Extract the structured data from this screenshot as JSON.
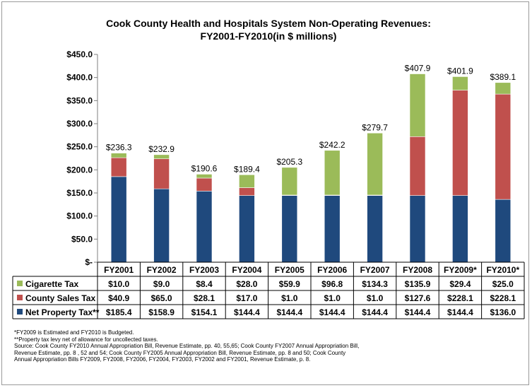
{
  "chart_data": {
    "type": "bar",
    "stacked": true,
    "title": "Cook County Health and Hospitals System Non-Operating Revenues:",
    "subtitle": "FY2001-FY2010(in $ millions)",
    "categories": [
      "FY2001",
      "FY2002",
      "FY2003",
      "FY2004",
      "FY2005",
      "FY2006",
      "FY2007",
      "FY2008",
      "FY2009*",
      "FY2010*"
    ],
    "series": [
      {
        "name": "Net Property Tax**",
        "color": "#1F497D",
        "values": [
          185.4,
          158.9,
          154.1,
          144.4,
          144.4,
          144.4,
          144.4,
          144.4,
          144.4,
          136.0
        ],
        "labels": [
          "$185.4",
          "$158.9",
          "$154.1",
          "$144.4",
          "$144.4",
          "$144.4",
          "$144.4",
          "$144.4",
          "$144.4",
          "$136.0"
        ]
      },
      {
        "name": "County Sales Tax",
        "color": "#C0504D",
        "values": [
          40.9,
          65.0,
          28.1,
          17.0,
          1.0,
          1.0,
          1.0,
          127.6,
          228.1,
          228.1
        ],
        "labels": [
          "$40.9",
          "$65.0",
          "$28.1",
          "$17.0",
          "$1.0",
          "$1.0",
          "$1.0",
          "$127.6",
          "$228.1",
          "$228.1"
        ]
      },
      {
        "name": "Cigarette Tax",
        "color": "#9BBB59",
        "values": [
          10.0,
          9.0,
          8.4,
          28.0,
          59.9,
          96.8,
          134.3,
          135.9,
          29.4,
          25.0
        ],
        "labels": [
          "$10.0",
          "$9.0",
          "$8.4",
          "$28.0",
          "$59.9",
          "$96.8",
          "$134.3",
          "$135.9",
          "$29.4",
          "$25.0"
        ]
      }
    ],
    "totals": [
      "$236.3",
      "$232.9",
      "$190.6",
      "$189.4",
      "$205.3",
      "$242.2",
      "$279.7",
      "$407.9",
      "$401.9",
      "$389.1"
    ],
    "totals_values": [
      236.3,
      232.9,
      190.6,
      189.4,
      205.3,
      242.2,
      279.7,
      407.9,
      401.9,
      389.1
    ],
    "ylim": [
      0,
      450
    ],
    "yticks": [
      0,
      50,
      100,
      150,
      200,
      250,
      300,
      350,
      400,
      450
    ],
    "ytick_labels": [
      "$-",
      "$50.0",
      "$100.0",
      "$150.0",
      "$200.0",
      "$250.0",
      "$300.0",
      "$350.0",
      "$400.0",
      "$450.0"
    ],
    "grid": false,
    "legend": "data-table"
  },
  "footnotes": [
    "*FY2009 is Estimated and FY2010 is Budgeted.",
    "**Property tax levy net of allowance for uncollected taxes.",
    "Source: Cook County FY2010 Annual Appropriation Bill, Revenue Estimate, pp. 40, 55,65; Cook County FY2007 Annual Appropriation Bill,",
    " Revenue Estimate, pp. 8 , 52 and 54; Cook County FY2005 Annual Appropriation Bill, Revenue Estimate, pp. 8 and 50; Cook County",
    " Annual Appropriation Bills FY2009, FY2008, FY2006, FY2004, FY2003, FY2002 and FY2001, Revenue Estimate, p. 8."
  ]
}
